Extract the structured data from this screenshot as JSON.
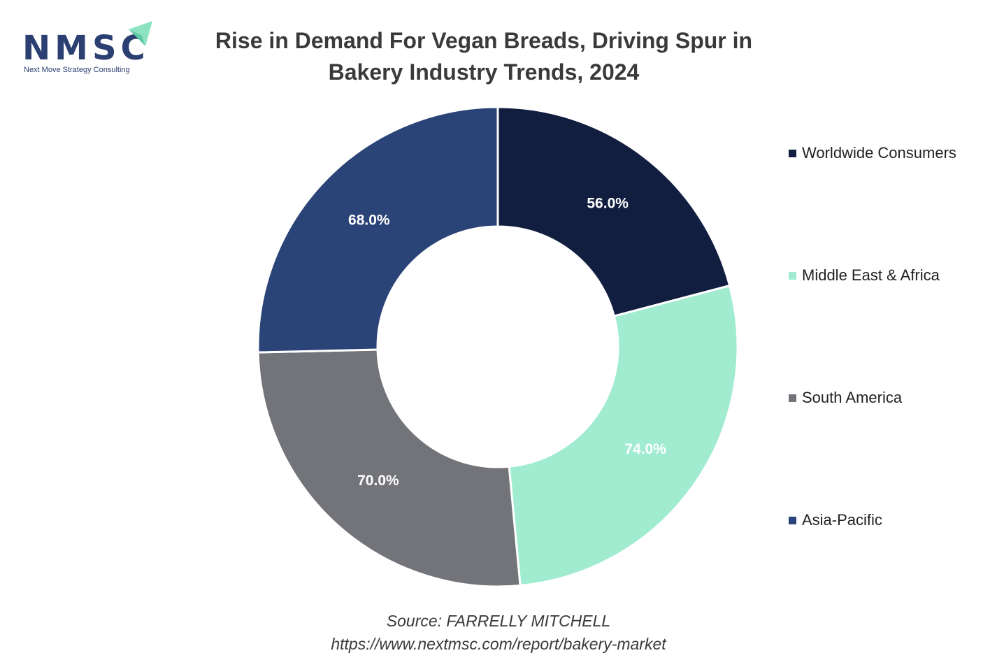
{
  "logo": {
    "name": "NMSC",
    "tagline": "Next Move Strategy Consulting"
  },
  "colors": {
    "worldwide": "#111e40",
    "mea": "#a1ecd1",
    "south_america": "#727479",
    "asia_pacific": "#2b4478",
    "logo_accent": "#8be3c2"
  },
  "chart_data": {
    "type": "pie",
    "variant": "donut",
    "title": "Rise in Demand For Vegan Breads, Driving Spur in Bakery Industry Trends, 2024",
    "title_lines": [
      "Rise in Demand For Vegan Breads, Driving Spur in",
      "Bakery Industry Trends, 2024"
    ],
    "categories": [
      "Worldwide Consumers",
      "Middle East & Africa",
      "South America",
      "Asia-Pacific"
    ],
    "values": [
      56.0,
      74.0,
      70.0,
      68.0
    ],
    "data_labels": [
      "56.0%",
      "74.0%",
      "70.0%",
      "68.0%"
    ],
    "legend_position": "right",
    "source_lines": [
      "Source: FARRELLY MITCHELL",
      "https://www.nextmsc.com/report/bakery-market"
    ]
  }
}
